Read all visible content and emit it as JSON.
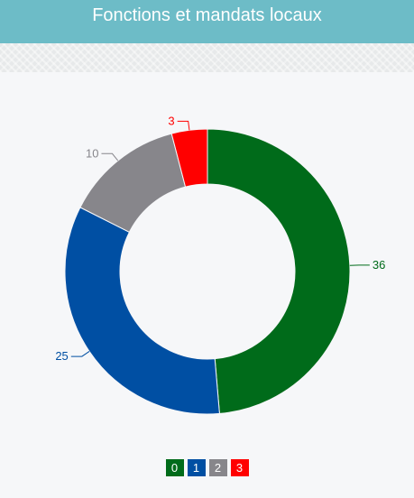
{
  "header": {
    "title": "Fonctions et mandats locaux"
  },
  "chart_data": {
    "type": "pie",
    "donut": true,
    "categories": [
      "0",
      "1",
      "2",
      "3"
    ],
    "values": [
      36,
      25,
      10,
      3
    ],
    "colors": [
      "#006b1a",
      "#004fa3",
      "#87868b",
      "#ff0000"
    ],
    "legend": "bottom-center"
  }
}
